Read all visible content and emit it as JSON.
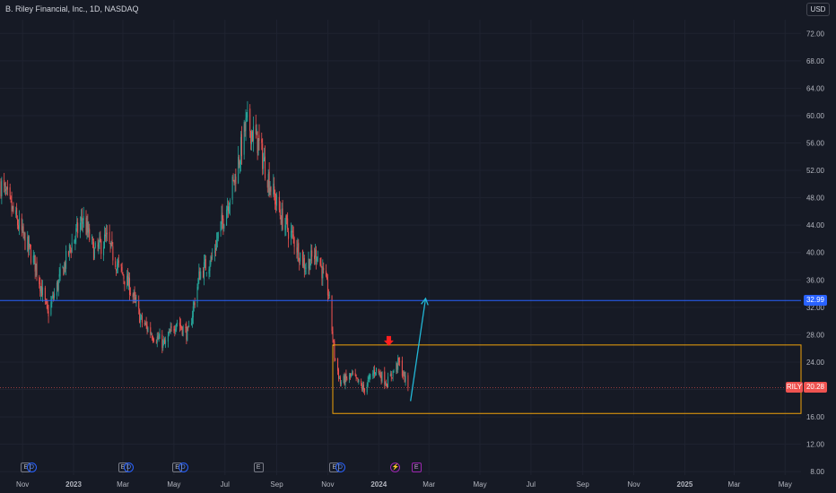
{
  "header": {
    "title": "B. Riley Financial, Inc., 1D, NASDAQ",
    "currency_button": "USD"
  },
  "colors": {
    "background": "#161a25",
    "grid": "#1f2330",
    "axis_text": "#b2b5be",
    "candle_up": "#26a69a",
    "candle_down": "#ef5350",
    "horizontal_line": "#2962ff",
    "range_box": "#f0a30a",
    "arrow_up": "#22b7d6",
    "arrow_down": "#ff1f1f",
    "last_price_line": "#ef5350"
  },
  "chart_data": {
    "type": "candlestick",
    "symbol": "RILY",
    "title": "B. Riley Financial, Inc., 1D, NASDAQ",
    "xlabel": "",
    "ylabel": "",
    "ylim": [
      7.5,
      74
    ],
    "y_ticks": [
      8,
      12,
      16,
      20,
      24,
      28,
      32,
      36,
      40,
      44,
      48,
      52,
      56,
      60,
      64,
      68,
      72
    ],
    "x_ticks": [
      {
        "label": "Nov",
        "date": "2022-11-01"
      },
      {
        "label": "2023",
        "date": "2023-01-01"
      },
      {
        "label": "Mar",
        "date": "2023-03-01"
      },
      {
        "label": "May",
        "date": "2023-05-01"
      },
      {
        "label": "Jul",
        "date": "2023-07-01"
      },
      {
        "label": "Sep",
        "date": "2023-09-01"
      },
      {
        "label": "Nov",
        "date": "2023-11-01"
      },
      {
        "label": "2024",
        "date": "2024-01-01"
      },
      {
        "label": "Mar",
        "date": "2024-03-01"
      },
      {
        "label": "May",
        "date": "2024-05-01"
      },
      {
        "label": "Jul",
        "date": "2024-07-01"
      },
      {
        "label": "Sep",
        "date": "2024-09-01"
      },
      {
        "label": "Nov",
        "date": "2024-11-01"
      },
      {
        "label": "2025",
        "date": "2025-01-01"
      },
      {
        "label": "Mar",
        "date": "2025-03-01"
      },
      {
        "label": "May",
        "date": "2025-05-01"
      }
    ],
    "xlim": [
      "2022-10-05",
      "2025-05-20"
    ],
    "grid": true,
    "close_path": [
      [
        "2022-10-06",
        50
      ],
      [
        "2022-10-20",
        46
      ],
      [
        "2022-11-03",
        42
      ],
      [
        "2022-11-17",
        38
      ],
      [
        "2022-12-01",
        31
      ],
      [
        "2022-12-15",
        36
      ],
      [
        "2022-12-29",
        41
      ],
      [
        "2023-01-12",
        45
      ],
      [
        "2023-01-26",
        40
      ],
      [
        "2023-02-09",
        42
      ],
      [
        "2023-02-23",
        38
      ],
      [
        "2023-03-09",
        35
      ],
      [
        "2023-03-23",
        30
      ],
      [
        "2023-04-06",
        28
      ],
      [
        "2023-04-20",
        26.5
      ],
      [
        "2023-05-04",
        30
      ],
      [
        "2023-05-18",
        28
      ],
      [
        "2023-06-01",
        37
      ],
      [
        "2023-06-15",
        39
      ],
      [
        "2023-06-29",
        45
      ],
      [
        "2023-07-13",
        51
      ],
      [
        "2023-07-27",
        59
      ],
      [
        "2023-08-10",
        56
      ],
      [
        "2023-08-24",
        50
      ],
      [
        "2023-09-07",
        45
      ],
      [
        "2023-09-21",
        42
      ],
      [
        "2023-10-05",
        38
      ],
      [
        "2023-10-19",
        40
      ],
      [
        "2023-11-02",
        34
      ],
      [
        "2023-11-09",
        25
      ],
      [
        "2023-11-16",
        21
      ],
      [
        "2023-11-30",
        22
      ],
      [
        "2023-12-14",
        20
      ],
      [
        "2023-12-28",
        23
      ],
      [
        "2024-01-11",
        21
      ],
      [
        "2024-01-25",
        24
      ],
      [
        "2024-02-05",
        20.28
      ]
    ],
    "last_price": 20.28,
    "horizontal_line": {
      "price": 32.99,
      "label": "32.99"
    },
    "range_box": {
      "x_start": "2023-11-07",
      "x_end": "2025-05-20",
      "y_top": 26.5,
      "y_bottom": 16.5
    },
    "annotations": [
      {
        "type": "arrow-down",
        "date": "2024-01-13",
        "price": 26.5
      },
      {
        "type": "arrow-up",
        "from_date": "2024-02-08",
        "from_price": 18.3,
        "to_date": "2024-02-26",
        "to_price": 33.3
      }
    ],
    "events": [
      {
        "type": "E",
        "date": "2022-11-05"
      },
      {
        "type": "D",
        "date": "2022-11-12"
      },
      {
        "type": "E",
        "date": "2023-03-01"
      },
      {
        "type": "D",
        "date": "2023-03-08"
      },
      {
        "type": "E",
        "date": "2023-05-05"
      },
      {
        "type": "D",
        "date": "2023-05-12"
      },
      {
        "type": "E",
        "date": "2023-08-10"
      },
      {
        "type": "E",
        "date": "2023-11-09"
      },
      {
        "type": "D",
        "date": "2023-11-16"
      },
      {
        "type": "S",
        "date": "2024-01-21"
      },
      {
        "type": "E",
        "date": "2024-02-15"
      }
    ]
  },
  "price_badges": {
    "line_price": "32.99",
    "symbol": "RILY",
    "last_price": "20.28"
  }
}
